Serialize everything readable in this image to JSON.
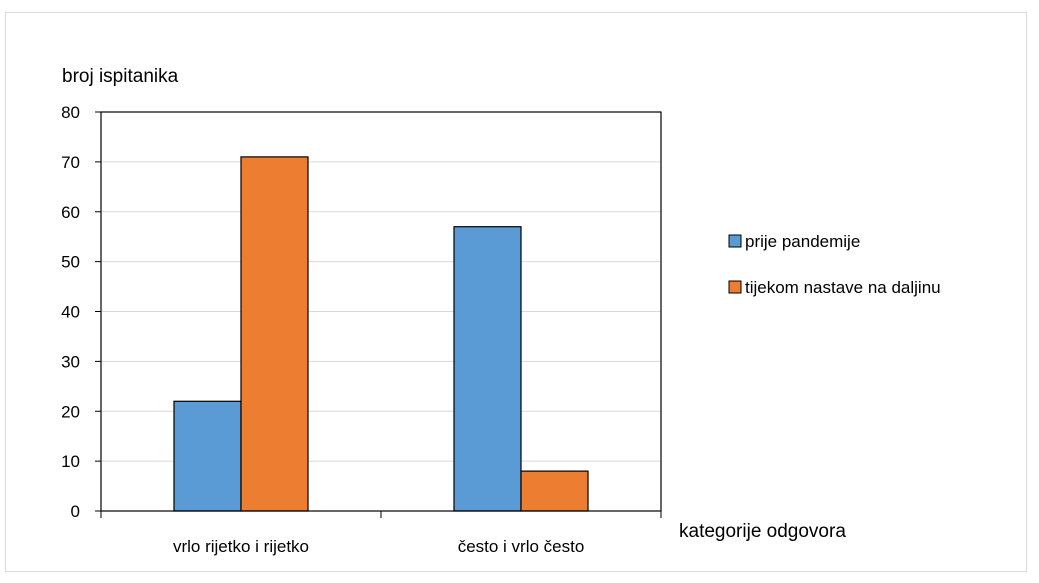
{
  "chart_data": {
    "type": "bar",
    "ylabel": "broj ispitanika",
    "xlabel": "kategorije odgovora",
    "categories": [
      "vrlo rijetko i rijetko",
      "često i vrlo često"
    ],
    "series": [
      {
        "name": "prije pandemije",
        "values": [
          22,
          57
        ],
        "color": "#5b9bd5"
      },
      {
        "name": "tijekom nastave na daljinu",
        "values": [
          71,
          8
        ],
        "color": "#ed7d31"
      }
    ],
    "ylim": [
      0,
      80
    ],
    "yticks": [
      0,
      10,
      20,
      30,
      40,
      50,
      60,
      70,
      80
    ],
    "grid": true,
    "legend_position": "right"
  }
}
